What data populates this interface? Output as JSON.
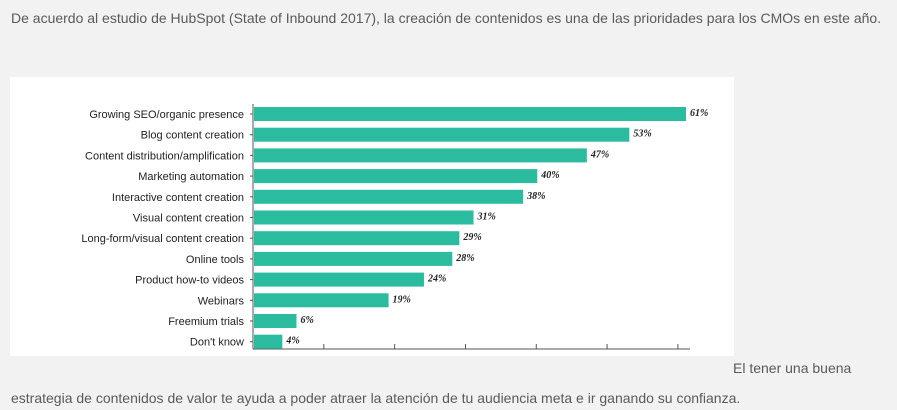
{
  "article": {
    "intro": "De acuerdo al estudio de HubSpot (State of Inbound 2017), la creación de contenidos es una de las prioridades para los CMOs en este año.",
    "outro_tail": "El tener una buena",
    "outro_line": "estrategia de contenidos de valor te ayuda a poder atraer la atención de tu audiencia meta e ir ganando su confianza."
  },
  "colors": {
    "bar": "#2bbc9f",
    "axis": "#555555"
  },
  "chart_data": {
    "type": "bar",
    "orientation": "horizontal",
    "categories": [
      "Growing SEO/organic presence",
      "Blog content creation",
      "Content distribution/amplification",
      "Marketing automation",
      "Interactive content creation",
      "Visual content creation",
      "Long-form/visual content creation",
      "Online tools",
      "Product how-to videos",
      "Webinars",
      "Freemium trials",
      "Don't know"
    ],
    "values": [
      61,
      53,
      47,
      40,
      38,
      31,
      29,
      28,
      24,
      19,
      6,
      4
    ],
    "value_labels": [
      "61%",
      "53%",
      "47%",
      "40%",
      "38%",
      "31%",
      "29%",
      "28%",
      "24%",
      "19%",
      "6%",
      "4%"
    ],
    "xlim": [
      0,
      63
    ],
    "grid": false,
    "legend": "none"
  }
}
